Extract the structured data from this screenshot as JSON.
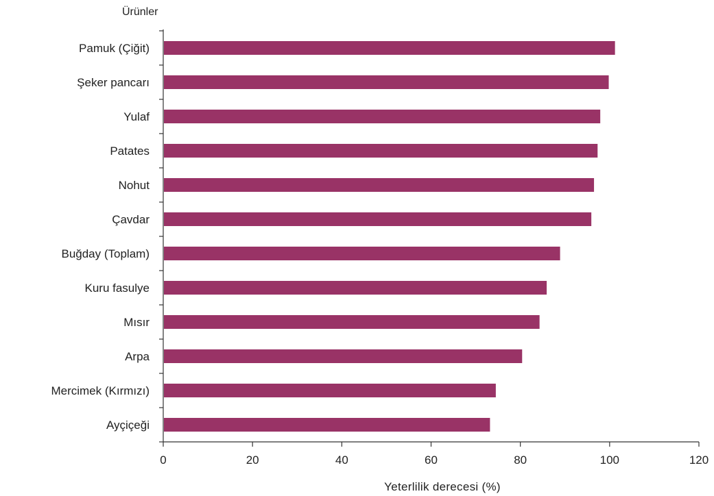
{
  "chart_data": {
    "type": "bar",
    "orientation": "horizontal",
    "ylabel": "Ürünler",
    "xlabel": "Yeterlilik  derecesi (%)",
    "xlim": [
      0,
      120
    ],
    "xticks": [
      "0",
      "20",
      "40",
      "60",
      "80",
      "100",
      "120"
    ],
    "grid": false,
    "categories": [
      "Pamuk (Çiğit)",
      "Şeker pancarı",
      "Yulaf",
      "Patates",
      "Nohut",
      "Çavdar",
      "Buğday (Toplam)",
      "Kuru fasulye",
      "Mısır",
      "Arpa",
      "Mercimek  (Kırmızı)",
      "Ayçiçeği"
    ],
    "values": [
      101.2,
      99.8,
      97.9,
      97.3,
      96.5,
      95.9,
      88.9,
      85.9,
      84.3,
      80.4,
      74.5,
      73.2
    ],
    "bar_color": "#993366"
  }
}
